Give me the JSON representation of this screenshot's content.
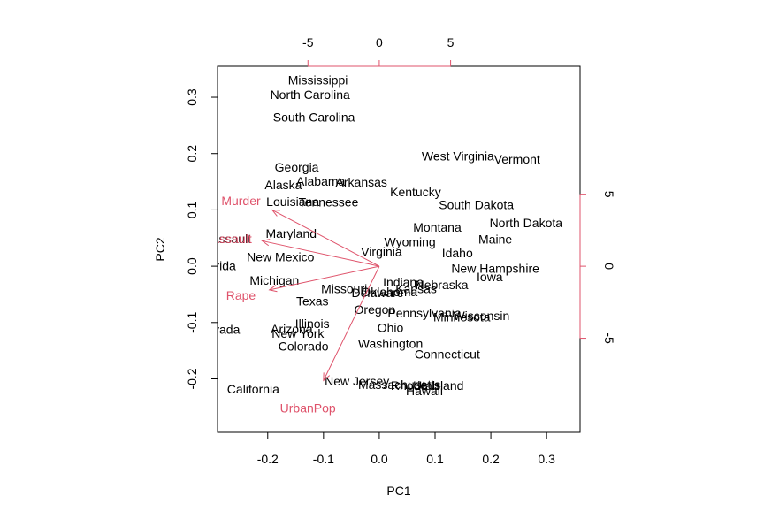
{
  "chart_data": {
    "type": "scatter",
    "subtype": "biplot",
    "xlabel": "PC1",
    "ylabel": "PC2",
    "xlim": [
      -0.29,
      0.36
    ],
    "ylim": [
      -0.295,
      0.355
    ],
    "xticks": [
      -0.2,
      -0.1,
      0.0,
      0.1,
      0.2,
      0.3
    ],
    "xtick_labels": [
      "-0.2",
      "-0.1",
      "0.0",
      "0.1",
      "0.2",
      "0.3"
    ],
    "yticks": [
      -0.2,
      -0.1,
      0.0,
      0.1,
      0.2,
      0.3
    ],
    "ytick_labels": [
      "-0.2",
      "-0.1",
      "0.0",
      "0.1",
      "0.2",
      "0.3"
    ],
    "top_ticks": [
      -5,
      0,
      5
    ],
    "top_tick_labels": [
      "-5",
      "0",
      "5"
    ],
    "right_ticks": [
      -5,
      0,
      5
    ],
    "right_tick_labels": [
      "-5",
      "0",
      "5"
    ],
    "secondary_scale": 39.1,
    "box_color": "#000000",
    "arrow_color": "#DF536B",
    "label_color": "#000000",
    "points": [
      {
        "name": "Mississippi",
        "x": -0.11,
        "y": 0.331
      },
      {
        "name": "North Carolina",
        "x": -0.124,
        "y": 0.305
      },
      {
        "name": "South Carolina",
        "x": -0.117,
        "y": 0.265
      },
      {
        "name": "Georgia",
        "x": -0.148,
        "y": 0.176
      },
      {
        "name": "Alaska",
        "x": -0.172,
        "y": 0.145
      },
      {
        "name": "Alabama",
        "x": -0.105,
        "y": 0.151
      },
      {
        "name": "Arkansas",
        "x": -0.032,
        "y": 0.149
      },
      {
        "name": "Louisiana",
        "x": -0.155,
        "y": 0.115
      },
      {
        "name": "Tennessee",
        "x": -0.091,
        "y": 0.114
      },
      {
        "name": "Kentucky",
        "x": 0.065,
        "y": 0.132
      },
      {
        "name": "West Virginia",
        "x": 0.141,
        "y": 0.196
      },
      {
        "name": "Vermont",
        "x": 0.247,
        "y": 0.19
      },
      {
        "name": "South Dakota",
        "x": 0.174,
        "y": 0.109
      },
      {
        "name": "North Dakota",
        "x": 0.263,
        "y": 0.077
      },
      {
        "name": "Montana",
        "x": 0.104,
        "y": 0.069
      },
      {
        "name": "Maine",
        "x": 0.208,
        "y": 0.048
      },
      {
        "name": "Wyoming",
        "x": 0.055,
        "y": 0.043
      },
      {
        "name": "Idaho",
        "x": 0.14,
        "y": 0.024
      },
      {
        "name": "Maryland",
        "x": -0.158,
        "y": 0.058
      },
      {
        "name": "Assault",
        "x": -0.266,
        "y": 0.049
      },
      {
        "name": "Virginia",
        "x": 0.004,
        "y": 0.026
      },
      {
        "name": "New Mexico",
        "x": -0.177,
        "y": 0.017
      },
      {
        "name": "Florida",
        "x": -0.291,
        "y": 0.001
      },
      {
        "name": "New Hampshire",
        "x": 0.208,
        "y": -0.004
      },
      {
        "name": "Iowa",
        "x": 0.198,
        "y": -0.019
      },
      {
        "name": "Michigan",
        "x": -0.188,
        "y": -0.025
      },
      {
        "name": "Indiana",
        "x": 0.043,
        "y": -0.028
      },
      {
        "name": "Nebraska",
        "x": 0.112,
        "y": -0.033
      },
      {
        "name": "Kansas",
        "x": 0.066,
        "y": -0.04
      },
      {
        "name": "Missouri",
        "x": -0.063,
        "y": -0.04
      },
      {
        "name": "Oklahoma",
        "x": 0.018,
        "y": -0.045
      },
      {
        "name": "Delaware",
        "x": -0.003,
        "y": -0.047
      },
      {
        "name": "Texas",
        "x": -0.12,
        "y": -0.062
      },
      {
        "name": "Oregon",
        "x": -0.008,
        "y": -0.077
      },
      {
        "name": "Pennsylvania",
        "x": 0.081,
        "y": -0.083
      },
      {
        "name": "Minnesota",
        "x": 0.148,
        "y": -0.09
      },
      {
        "name": "Wisconsin",
        "x": 0.183,
        "y": -0.088
      },
      {
        "name": "Illinois",
        "x": -0.12,
        "y": -0.102
      },
      {
        "name": "Ohio",
        "x": 0.02,
        "y": -0.109
      },
      {
        "name": "Nevada",
        "x": -0.288,
        "y": -0.112
      },
      {
        "name": "Arizona",
        "x": -0.157,
        "y": -0.111
      },
      {
        "name": "New York",
        "x": -0.146,
        "y": -0.119
      },
      {
        "name": "Washington",
        "x": 0.02,
        "y": -0.137
      },
      {
        "name": "Colorado",
        "x": -0.136,
        "y": -0.142
      },
      {
        "name": "Connecticut",
        "x": 0.122,
        "y": -0.156
      },
      {
        "name": "New Jersey",
        "x": -0.04,
        "y": -0.204
      },
      {
        "name": "Massachusetts",
        "x": 0.036,
        "y": -0.21
      },
      {
        "name": "Rhode Island",
        "x": 0.086,
        "y": -0.212
      },
      {
        "name": "Utah",
        "x": 0.084,
        "y": -0.212
      },
      {
        "name": "Hawaii",
        "x": 0.081,
        "y": -0.221
      },
      {
        "name": "California",
        "x": -0.226,
        "y": -0.218
      }
    ],
    "loadings": [
      {
        "name": "Murder",
        "x": -0.192,
        "y": 0.1
      },
      {
        "name": "Assault",
        "x": -0.21,
        "y": 0.045
      },
      {
        "name": "Rape",
        "x": -0.197,
        "y": -0.042
      },
      {
        "name": "UrbanPop",
        "x": -0.1,
        "y": -0.203
      }
    ],
    "loading_labels": [
      {
        "name": "Murder",
        "x": -0.248,
        "y": 0.116
      },
      {
        "name": "Assault",
        "x": -0.265,
        "y": 0.049
      },
      {
        "name": "Rape",
        "x": -0.248,
        "y": -0.052
      },
      {
        "name": "UrbanPop",
        "x": -0.128,
        "y": -0.252
      }
    ]
  }
}
